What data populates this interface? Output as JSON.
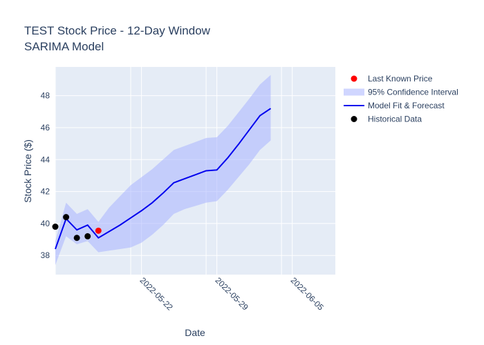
{
  "chart_data": {
    "type": "line",
    "title": "TEST Stock Price - 12-Day Window",
    "subtitle": "SARIMA Model",
    "xlabel": "Date",
    "ylabel": "Stock Price ($)",
    "xlim": [
      "2022-05-14",
      "2022-06-09"
    ],
    "ylim": [
      36.8,
      49.8
    ],
    "x_ticks": [
      "2022-05-22",
      "2022-05-29",
      "2022-06-05"
    ],
    "y_ticks": [
      38,
      40,
      42,
      44,
      46,
      48
    ],
    "grid": true,
    "legend_position": "right",
    "series": [
      {
        "name": "Historical Data",
        "kind": "scatter",
        "color": "#000000",
        "x": [
          "2022-05-14",
          "2022-05-15",
          "2022-05-16",
          "2022-05-17"
        ],
        "y": [
          39.8,
          40.4,
          39.1,
          39.2
        ]
      },
      {
        "name": "Last Known Price",
        "kind": "scatter",
        "color": "#ff0000",
        "x": [
          "2022-05-18"
        ],
        "y": [
          39.55
        ]
      },
      {
        "name": "Model Fit & Forecast",
        "kind": "line",
        "color": "#0000ee",
        "x": [
          "2022-05-14",
          "2022-05-15",
          "2022-05-16",
          "2022-05-17",
          "2022-05-18",
          "2022-05-19",
          "2022-05-20",
          "2022-05-21",
          "2022-05-22",
          "2022-05-23",
          "2022-05-24",
          "2022-05-25",
          "2022-05-26",
          "2022-05-27",
          "2022-05-28",
          "2022-05-29",
          "2022-05-30",
          "2022-05-31",
          "2022-06-01",
          "2022-06-02",
          "2022-06-03"
        ],
        "y": [
          38.4,
          40.3,
          39.6,
          39.9,
          39.1,
          39.5,
          39.9,
          40.35,
          40.8,
          41.3,
          41.9,
          42.55,
          42.8,
          43.05,
          43.3,
          43.35,
          44.1,
          44.95,
          45.85,
          46.75,
          47.2
        ]
      },
      {
        "name": "95% Confidence Interval",
        "kind": "band",
        "color": "#aab4ff",
        "x": [
          "2022-05-14",
          "2022-05-15",
          "2022-05-16",
          "2022-05-17",
          "2022-05-18",
          "2022-05-19",
          "2022-05-20",
          "2022-05-21",
          "2022-05-22",
          "2022-05-23",
          "2022-05-24",
          "2022-05-25",
          "2022-05-26",
          "2022-05-27",
          "2022-05-28",
          "2022-05-29",
          "2022-05-30",
          "2022-05-31",
          "2022-06-01",
          "2022-06-02",
          "2022-06-03"
        ],
        "lower": [
          37.4,
          39.2,
          38.7,
          38.9,
          38.2,
          38.3,
          38.4,
          38.5,
          38.8,
          39.3,
          39.9,
          40.6,
          40.9,
          41.1,
          41.3,
          41.4,
          42.1,
          42.9,
          43.7,
          44.6,
          45.2
        ],
        "upper": [
          38.9,
          41.3,
          40.6,
          40.9,
          40.1,
          41.0,
          41.7,
          42.4,
          42.9,
          43.4,
          44.0,
          44.6,
          44.85,
          45.1,
          45.35,
          45.4,
          46.1,
          46.95,
          47.8,
          48.7,
          49.3
        ]
      }
    ],
    "legend": [
      {
        "label": "Last Known Price",
        "symbol": "dot",
        "color": "#ff0000"
      },
      {
        "label": "95% Confidence Interval",
        "symbol": "band",
        "color": "#aab4ff"
      },
      {
        "label": "Model Fit & Forecast",
        "symbol": "line",
        "color": "#0000ee"
      },
      {
        "label": "Historical Data",
        "symbol": "dot",
        "color": "#000000"
      }
    ]
  }
}
